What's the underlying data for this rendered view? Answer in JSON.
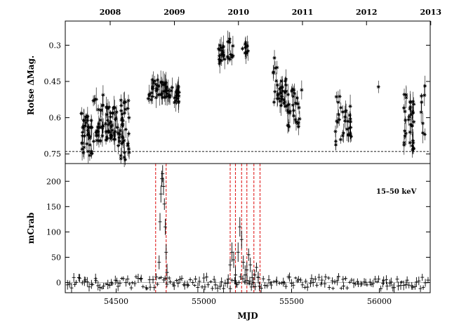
{
  "chart_data": [
    {
      "id": "optical",
      "type": "scatter",
      "title": "",
      "xlabel": "",
      "ylabel": "Rotse ΔMag.",
      "xlim": [
        54210,
        56290
      ],
      "ylim": [
        0.79,
        0.2
      ],
      "y_inverted": true,
      "y_ticks": [
        0.3,
        0.45,
        0.6,
        0.75
      ],
      "y_tick_labels": [
        "0.3",
        "0.45",
        "0.6",
        "0.75"
      ],
      "top_axis": {
        "ticks": [
          54466,
          54832,
          55197,
          55562,
          55927,
          56293
        ],
        "labels": [
          "2008",
          "2009",
          "2010",
          "2011",
          "2012",
          "2013"
        ]
      },
      "reference_line": {
        "y": 0.74,
        "style": "dashed"
      },
      "clusters": [
        {
          "x_start": 54300,
          "x_end": 54365,
          "y_min": 0.58,
          "y_max": 0.76,
          "n": 40
        },
        {
          "x_start": 54370,
          "x_end": 54430,
          "y_min": 0.5,
          "y_max": 0.72,
          "n": 30
        },
        {
          "x_start": 54440,
          "x_end": 54510,
          "y_min": 0.55,
          "y_max": 0.7,
          "n": 40
        },
        {
          "x_start": 54510,
          "x_end": 54575,
          "y_min": 0.52,
          "y_max": 0.78,
          "n": 40
        },
        {
          "x_start": 54680,
          "x_end": 54700,
          "y_min": 0.5,
          "y_max": 0.54,
          "n": 4
        },
        {
          "x_start": 54700,
          "x_end": 54790,
          "y_min": 0.44,
          "y_max": 0.52,
          "n": 35
        },
        {
          "x_start": 54790,
          "x_end": 54860,
          "y_min": 0.47,
          "y_max": 0.54,
          "n": 25
        },
        {
          "x_start": 55080,
          "x_end": 55135,
          "y_min": 0.3,
          "y_max": 0.38,
          "n": 20
        },
        {
          "x_start": 55135,
          "x_end": 55170,
          "y_min": 0.27,
          "y_max": 0.37,
          "n": 12
        },
        {
          "x_start": 55220,
          "x_end": 55255,
          "y_min": 0.29,
          "y_max": 0.34,
          "n": 10
        },
        {
          "x_start": 55390,
          "x_end": 55420,
          "y_min": 0.35,
          "y_max": 0.55,
          "n": 10
        },
        {
          "x_start": 55420,
          "x_end": 55470,
          "y_min": 0.44,
          "y_max": 0.58,
          "n": 25
        },
        {
          "x_start": 55470,
          "x_end": 55560,
          "y_min": 0.48,
          "y_max": 0.64,
          "n": 30
        },
        {
          "x_start": 55750,
          "x_end": 55790,
          "y_min": 0.5,
          "y_max": 0.72,
          "n": 12
        },
        {
          "x_start": 55790,
          "x_end": 55840,
          "y_min": 0.55,
          "y_max": 0.68,
          "n": 20
        },
        {
          "x_start": 55990,
          "x_end": 56000,
          "y_min": 0.46,
          "y_max": 0.48,
          "n": 1
        },
        {
          "x_start": 56140,
          "x_end": 56200,
          "y_min": 0.5,
          "y_max": 0.74,
          "n": 35
        },
        {
          "x_start": 56230,
          "x_end": 56265,
          "y_min": 0.45,
          "y_max": 0.7,
          "n": 8
        }
      ]
    },
    {
      "id": "xray",
      "type": "scatter",
      "title": "",
      "xlabel": "MJD",
      "ylabel": "mCrab",
      "xlim": [
        54210,
        56290
      ],
      "ylim": [
        -20,
        235
      ],
      "x_ticks": [
        54500,
        55000,
        55500,
        56000
      ],
      "x_tick_labels": [
        "54500",
        "55000",
        "55500",
        "56000"
      ],
      "y_ticks": [
        0,
        50,
        100,
        150,
        200
      ],
      "y_tick_labels": [
        "0",
        "50",
        "100",
        "150",
        "200"
      ],
      "annotation": "15–50 keV",
      "vertical_lines": [
        54725,
        54785,
        55150,
        55180,
        55215,
        55245,
        55285,
        55320
      ],
      "outbursts": [
        {
          "x": [
            54745,
            54750,
            54755,
            54760,
            54765,
            54770,
            54775,
            54780,
            54785,
            54790
          ],
          "y": [
            40,
            120,
            175,
            205,
            215,
            190,
            155,
            110,
            60,
            20
          ]
        },
        {
          "x": [
            55150,
            55160,
            55170,
            55180
          ],
          "y": [
            35,
            60,
            45,
            15
          ]
        },
        {
          "x": [
            55195,
            55205,
            55215,
            55225,
            55235
          ],
          "y": [
            60,
            110,
            85,
            40,
            15
          ]
        },
        {
          "x": [
            55245,
            55255,
            55265,
            55275
          ],
          "y": [
            25,
            55,
            35,
            10
          ]
        },
        {
          "x": [
            55290,
            55300,
            55310
          ],
          "y": [
            15,
            30,
            10
          ]
        }
      ],
      "baseline": {
        "x_start": 54220,
        "x_end": 56280,
        "mean": 0,
        "scatter": 12,
        "n": 200
      }
    }
  ]
}
